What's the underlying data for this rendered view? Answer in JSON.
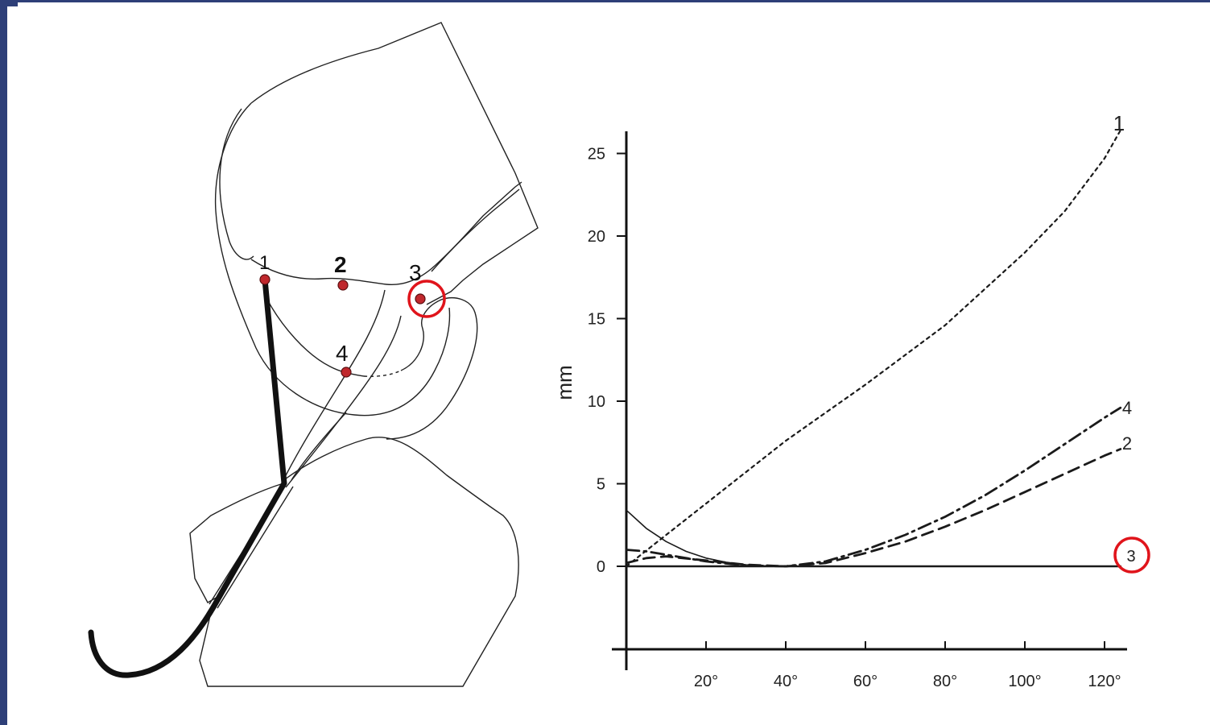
{
  "diagram": {
    "points": [
      {
        "id": "1",
        "label": "1"
      },
      {
        "id": "2",
        "label": "2"
      },
      {
        "id": "3",
        "label": "3",
        "highlighted": true
      },
      {
        "id": "4",
        "label": "4"
      }
    ],
    "point_color": "#c0282d",
    "highlight_color": "#e0141b"
  },
  "chart_data": {
    "type": "line",
    "ylabel": "mm",
    "xlabel": "",
    "x_tick_labels": [
      "20°",
      "40°",
      "60°",
      "80°",
      "100°",
      "120°"
    ],
    "y_tick_labels": [
      "0",
      "5",
      "10",
      "15",
      "20",
      "25"
    ],
    "xlim": [
      0,
      125
    ],
    "ylim": [
      -5,
      25
    ],
    "grid": false,
    "series": [
      {
        "name": "1",
        "style": "dotted",
        "x": [
          0,
          10,
          20,
          30,
          40,
          50,
          60,
          70,
          80,
          90,
          100,
          110,
          120,
          124
        ],
        "y": [
          0,
          1.9,
          3.8,
          5.7,
          7.6,
          9.3,
          11.0,
          12.8,
          14.6,
          16.8,
          19.0,
          21.5,
          24.7,
          26.4
        ]
      },
      {
        "name": "4",
        "style": "dash-dot",
        "x": [
          0,
          5,
          10,
          20,
          30,
          40,
          50,
          60,
          70,
          80,
          90,
          100,
          110,
          120,
          124
        ],
        "y": [
          1.0,
          0.9,
          0.7,
          0.3,
          0.05,
          0,
          0.3,
          1.0,
          1.9,
          3.0,
          4.3,
          5.8,
          7.4,
          9.0,
          9.6
        ]
      },
      {
        "name": "2",
        "style": "dashed",
        "x": [
          0,
          5,
          10,
          20,
          30,
          40,
          50,
          60,
          70,
          80,
          90,
          100,
          110,
          120,
          124
        ],
        "y": [
          0.2,
          0.5,
          0.6,
          0.35,
          0.1,
          0,
          0.2,
          0.8,
          1.5,
          2.4,
          3.4,
          4.5,
          5.6,
          6.7,
          7.1
        ]
      },
      {
        "name": "3",
        "style": "solid",
        "highlighted": true,
        "x": [
          0,
          124
        ],
        "y": [
          0,
          0
        ]
      },
      {
        "name": "",
        "style": "solid-thin",
        "x": [
          0,
          5,
          10,
          15,
          20,
          25,
          30,
          35,
          40
        ],
        "y": [
          3.4,
          2.3,
          1.5,
          0.9,
          0.5,
          0.25,
          0.1,
          0.03,
          0
        ]
      }
    ]
  }
}
